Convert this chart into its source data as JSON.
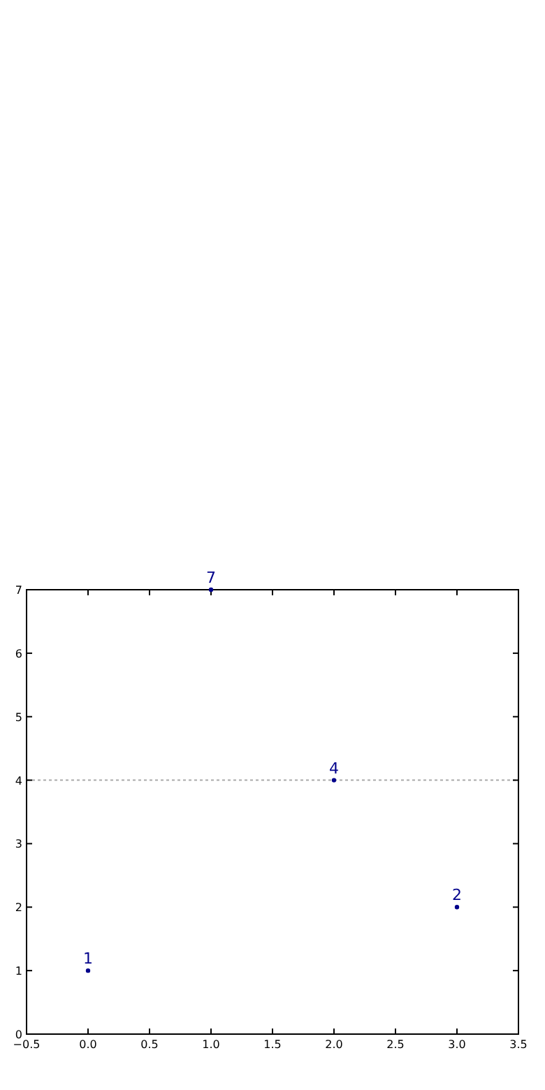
{
  "chart_data": {
    "type": "scatter",
    "marker": "circle",
    "data_labels": true,
    "grid": false,
    "legend": false,
    "x": [
      0,
      1,
      2,
      3
    ],
    "series": [
      {
        "color": "#00008b",
        "values": [
          1,
          7,
          4,
          2
        ]
      }
    ],
    "xlim": [
      -0.5,
      3.5
    ],
    "xticks": [
      {
        "value": -0.5,
        "label": "−0.5"
      },
      {
        "value": 0,
        "label": "0.0"
      },
      {
        "value": 0.5,
        "label": "0.5"
      },
      {
        "value": 1,
        "label": "1.0"
      },
      {
        "value": 1.5,
        "label": "1.5"
      },
      {
        "value": 2,
        "label": "2.0"
      },
      {
        "value": 2.5,
        "label": "2.5"
      },
      {
        "value": 3,
        "label": "3.0"
      },
      {
        "value": 3.5,
        "label": "3.5"
      }
    ],
    "ylim": [
      0,
      7
    ],
    "yticks": [
      0,
      1,
      2,
      3,
      4,
      5,
      6,
      7
    ],
    "ref_lines": [
      {
        "axis": "y",
        "value": 4,
        "color": "#aaaaaa",
        "line_style": "dotted"
      }
    ]
  }
}
